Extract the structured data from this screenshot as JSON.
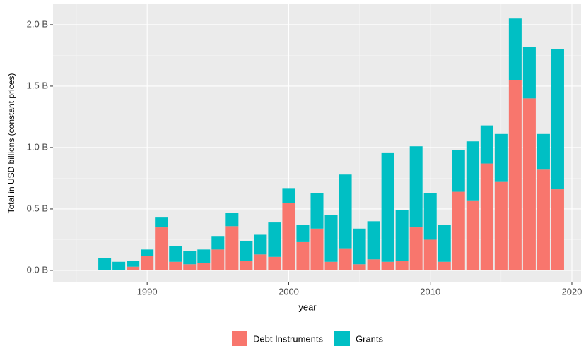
{
  "chart_data": {
    "type": "stacked_bar",
    "x_label": "year",
    "y_label": "Total in USD billions (constant prices)",
    "x": [
      1987,
      1988,
      1989,
      1990,
      1991,
      1992,
      1993,
      1994,
      1995,
      1996,
      1997,
      1998,
      1999,
      2000,
      2001,
      2002,
      2003,
      2004,
      2005,
      2006,
      2007,
      2008,
      2009,
      2010,
      2011,
      2012,
      2013,
      2014,
      2015,
      2016,
      2017,
      2018,
      2019
    ],
    "series": [
      {
        "name": "Debt Instruments",
        "color": "#F8766D",
        "values": [
          0,
          0,
          0.03,
          0.12,
          0.35,
          0.07,
          0.05,
          0.06,
          0.17,
          0.36,
          0.08,
          0.13,
          0.11,
          0.55,
          0.23,
          0.34,
          0.07,
          0.18,
          0.05,
          0.09,
          0.07,
          0.08,
          0.35,
          0.25,
          0.07,
          0.64,
          0.57,
          0.87,
          0.72,
          1.55,
          1.4,
          0.82,
          0.66
        ]
      },
      {
        "name": "Grants",
        "color": "#00BFC4",
        "values": [
          0.1,
          0.07,
          0.05,
          0.05,
          0.08,
          0.13,
          0.11,
          0.11,
          0.11,
          0.11,
          0.16,
          0.16,
          0.28,
          0.12,
          0.14,
          0.29,
          0.38,
          0.6,
          0.29,
          0.31,
          0.89,
          0.41,
          0.66,
          0.38,
          0.3,
          0.34,
          0.48,
          0.31,
          0.39,
          0.5,
          0.42,
          0.29,
          1.14
        ]
      }
    ],
    "xlim": [
      1983.35,
      2020.65
    ],
    "xticks": [
      1990,
      2000,
      2010,
      2020
    ],
    "ylim": [
      -0.098,
      2.172
    ],
    "yticks": [
      {
        "value": 0,
        "label": "0.0 B"
      },
      {
        "value": 0.5,
        "label": "0.5 B"
      },
      {
        "value": 1,
        "label": "1.0 B"
      },
      {
        "value": 1.5,
        "label": "1.5 B"
      },
      {
        "value": 2,
        "label": "2.0 B"
      }
    ],
    "grid": true,
    "legend_position": "bottom"
  }
}
